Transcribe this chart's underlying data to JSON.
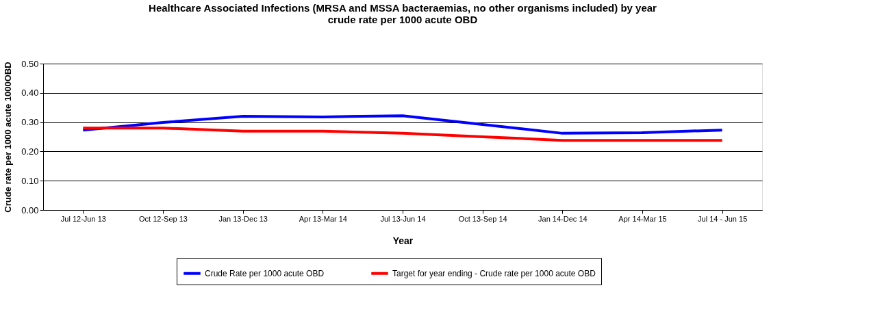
{
  "chart_data": {
    "type": "line",
    "title": [
      "Healthcare Associated Infections (MRSA and MSSA bacteraemias, no other organisms included) by year",
      "crude rate per 1000 acute OBD"
    ],
    "xlabel": "Year",
    "ylabel": "Crude rate per 1000 acute 1000OBD",
    "categories": [
      "Jul 12-Jun 13",
      "Oct 12-Sep 13",
      "Jan 13-Dec 13",
      "Apr 13-Mar 14",
      "Jul 13-Jun 14",
      "Oct 13-Sep 14",
      "Jan 14-Dec 14",
      "Apr 14-Mar 15",
      "Jul 14 - Jun 15"
    ],
    "series": [
      {
        "name": "Crude Rate per 1000 acute OBD",
        "color": "#0000ff",
        "values": [
          0.273,
          0.299,
          0.32,
          0.318,
          0.322,
          0.292,
          0.262,
          0.264,
          0.273
        ]
      },
      {
        "name": "Target for year ending - Crude rate per 1000 acute OBD",
        "color": "#ff0000",
        "values": [
          0.28,
          0.28,
          0.269,
          0.269,
          0.262,
          0.25,
          0.238,
          0.238,
          0.238
        ]
      }
    ],
    "ylim": [
      0,
      0.5
    ],
    "yticks": [
      {
        "value": 0,
        "label": "0.00"
      },
      {
        "value": 0.1,
        "label": "0.10"
      },
      {
        "value": 0.2,
        "label": "0.20"
      },
      {
        "value": 0.3,
        "label": "0.30"
      },
      {
        "value": 0.4,
        "label": "0.40"
      },
      {
        "value": 0.5,
        "label": "0.50"
      }
    ],
    "grid": "y",
    "legend": "bottom",
    "marker": "none",
    "line_style": "solid"
  }
}
